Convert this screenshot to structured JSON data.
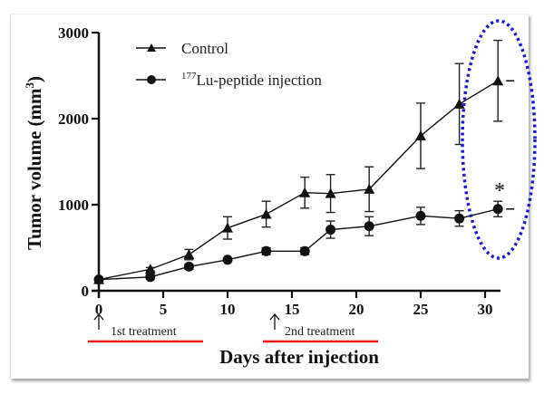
{
  "chart_data": {
    "type": "line",
    "title": "",
    "xlabel": "Days after injection",
    "ylabel": "Tumor volume (mm",
    "ylabel_superscript": "3",
    "ylabel_suffix": ")",
    "xlim": [
      0,
      32
    ],
    "ylim": [
      0,
      3000
    ],
    "x_ticks": [
      0,
      5,
      10,
      15,
      20,
      25,
      30
    ],
    "y_ticks": [
      0,
      1000,
      2000,
      3000
    ],
    "grid": false,
    "legend_position": "top-left",
    "x": [
      0,
      4,
      7,
      10,
      13,
      16,
      18,
      21,
      25,
      28,
      31
    ],
    "series": [
      {
        "name": "Control",
        "name_prefix_superscript": "",
        "marker": "triangle",
        "values": [
          130,
          250,
          420,
          730,
          890,
          1140,
          1130,
          1180,
          1800,
          2170,
          2440
        ],
        "errors": [
          0,
          20,
          60,
          130,
          150,
          180,
          220,
          260,
          380,
          470,
          470
        ]
      },
      {
        "name": "Lu-peptide injection",
        "name_prefix_superscript": "177",
        "marker": "circle",
        "values": [
          130,
          160,
          280,
          360,
          460,
          460,
          710,
          750,
          870,
          840,
          950
        ],
        "errors": [
          0,
          20,
          30,
          20,
          40,
          40,
          100,
          110,
          100,
          90,
          90
        ]
      }
    ],
    "annotations": [
      {
        "text": "1st treatment",
        "arrow_day": 0,
        "underline_color": "#e8141b"
      },
      {
        "text": "2nd treatment",
        "arrow_day": 13.5,
        "underline_color": "#e8141b"
      },
      {
        "text": "*",
        "at_day": 31,
        "series": "Lu-peptide injection",
        "meaning": "significance"
      }
    ],
    "highlight": {
      "shape": "dotted-ellipse",
      "color": "#1a1ad6",
      "around_day": 31
    }
  }
}
